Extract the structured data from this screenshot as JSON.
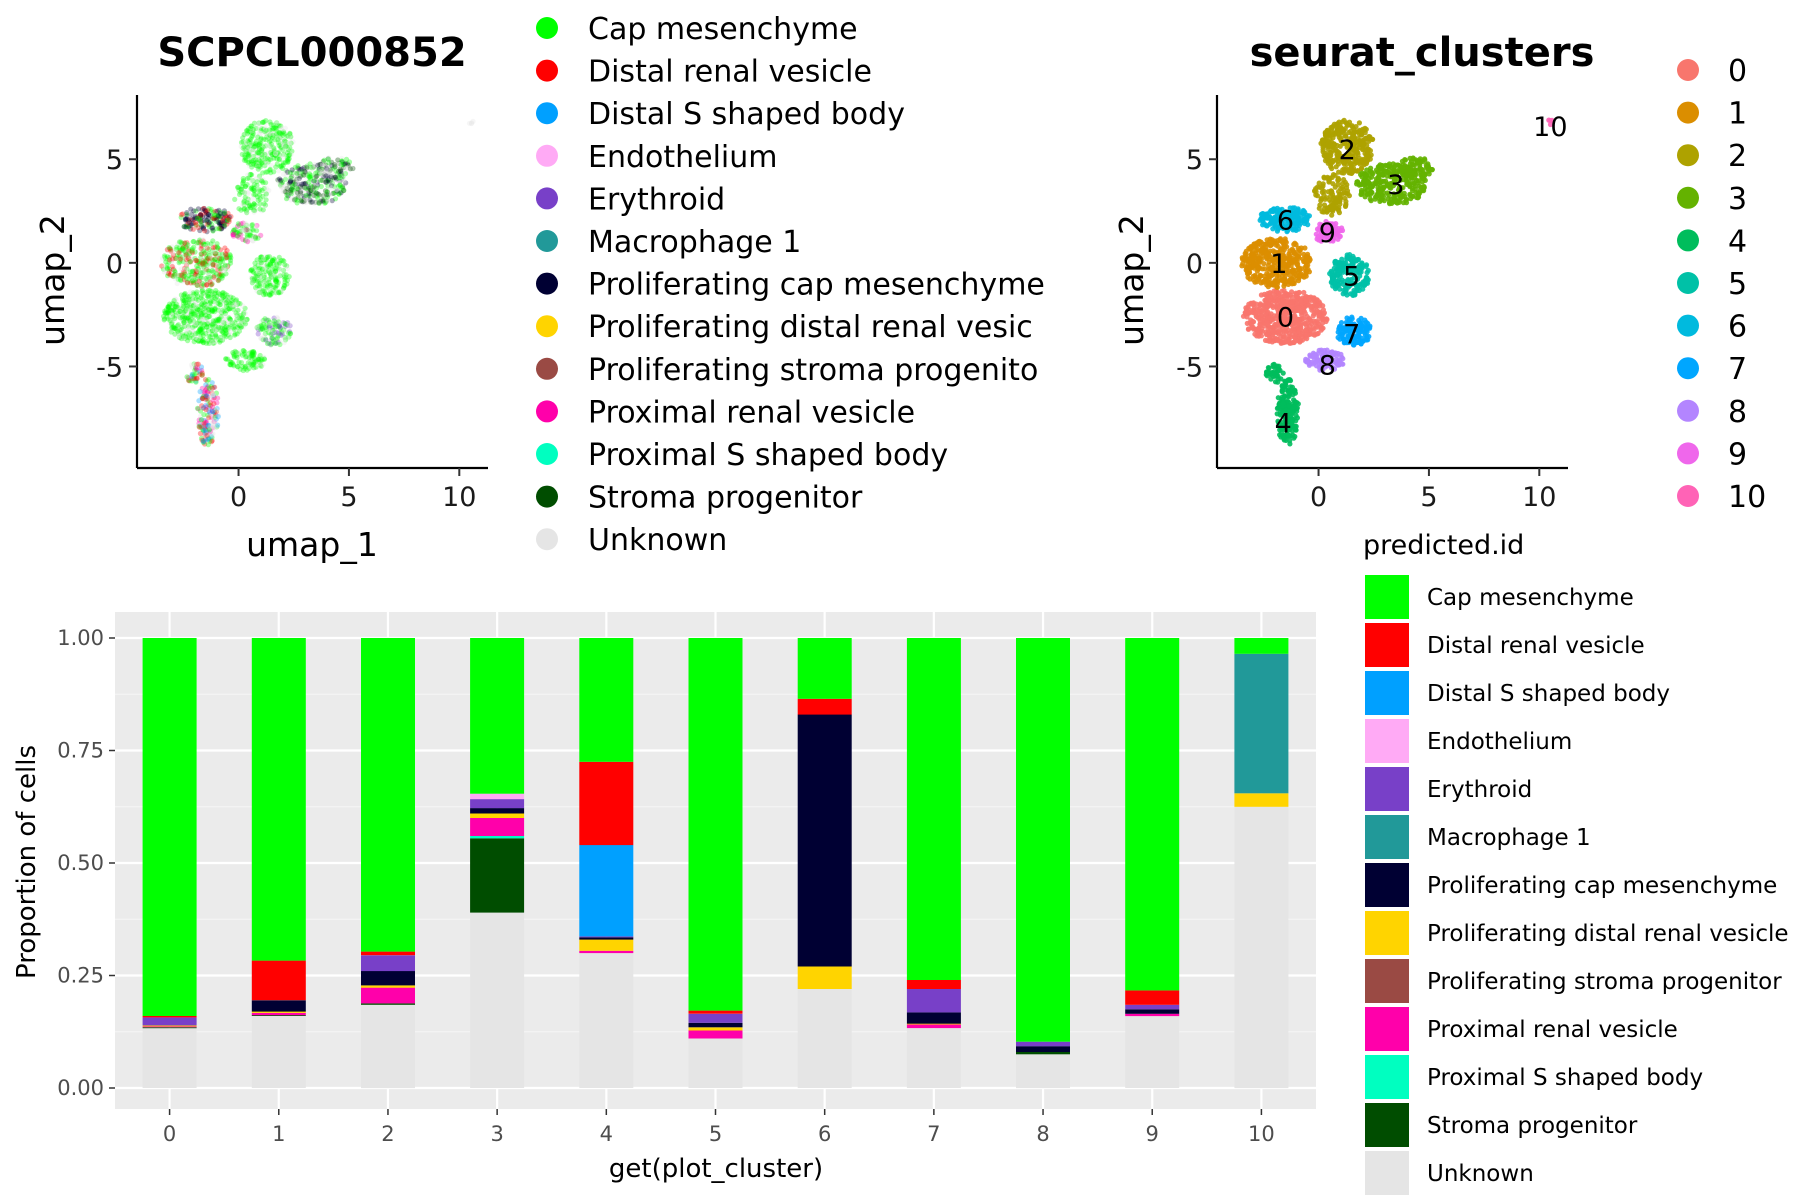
{
  "palette": {
    "Cap mesenchyme": "#00ff00",
    "Distal renal vesicle": "#ff0000",
    "Distal S shaped body": "#00a0ff",
    "Endothelium": "#ffaaf5",
    "Erythroid": "#7840c8",
    "Macrophage 1": "#219999",
    "Proliferating cap mesenchyme": "#000033",
    "Proliferating distal renal vesicle": "#ffd400",
    "Proliferating stroma progenitor": "#9a4a44",
    "Proximal renal vesicle": "#ff00aa",
    "Proximal S shaped body": "#00ffc0",
    "Stroma progenitor": "#004d00",
    "Unknown": "#e5e5e5"
  },
  "cluster_palette": [
    "#f8766d",
    "#db8e00",
    "#aea200",
    "#64b200",
    "#00bd5c",
    "#00c1a7",
    "#00bade",
    "#00a6ff",
    "#b385ff",
    "#ef67eb",
    "#ff63b6"
  ],
  "chart_data": [
    {
      "type": "scatter",
      "title": "SCPCL000852",
      "xlabel": "umap_1",
      "ylabel": "umap_2",
      "xlim": [
        -4.6,
        11.3
      ],
      "ylim": [
        -9.9,
        8.1
      ],
      "xticks": [
        "0",
        "5",
        "10"
      ],
      "xtick_values": [
        0,
        5,
        10
      ],
      "yticks": [
        "5",
        "0",
        "-5"
      ],
      "ytick_values": [
        5,
        0,
        -5
      ],
      "legend_position": "right",
      "legend": [
        "Cap mesenchyme",
        "Distal renal vesicle",
        "Distal S shaped body",
        "Endothelium",
        "Erythroid",
        "Macrophage 1",
        "Proliferating cap mesenchyme",
        "Proliferating distal renal vesicle",
        "Proliferating stroma progenitor",
        "Proximal renal vesicle",
        "Proximal S shaped body",
        "Stroma progenitor",
        "Unknown"
      ],
      "legend_display": [
        "Cap mesenchyme",
        "Distal renal vesicle",
        "Distal S shaped body",
        "Endothelium",
        "Erythroid",
        "Macrophage 1",
        "Proliferating cap mesenchyme",
        "Proliferating distal renal vesic",
        "Proliferating stroma progenito",
        "Proximal renal vesicle",
        "Proximal S shaped body",
        "Stroma progenitor",
        "Unknown"
      ]
    },
    {
      "type": "scatter",
      "title": "seurat_clusters",
      "xlabel": "",
      "ylabel": "umap_2",
      "xlim": [
        -4.6,
        11.3
      ],
      "ylim": [
        -9.9,
        8.1
      ],
      "xticks": [
        "0",
        "5",
        "10"
      ],
      "xtick_values": [
        0,
        5,
        10
      ],
      "yticks": [
        "5",
        "0",
        "-5"
      ],
      "ytick_values": [
        5,
        0,
        -5
      ],
      "legend_position": "right",
      "legend": [
        "0",
        "1",
        "2",
        "3",
        "4",
        "5",
        "6",
        "7",
        "8",
        "9",
        "10"
      ],
      "cluster_labels": [
        {
          "label": "0",
          "x": -1.5,
          "y": -2.6
        },
        {
          "label": "1",
          "x": -1.8,
          "y": 0.0
        },
        {
          "label": "2",
          "x": 1.3,
          "y": 5.5
        },
        {
          "label": "3",
          "x": 3.5,
          "y": 3.8
        },
        {
          "label": "4",
          "x": -1.6,
          "y": -7.7
        },
        {
          "label": "5",
          "x": 1.5,
          "y": -0.6
        },
        {
          "label": "6",
          "x": -1.5,
          "y": 2.1
        },
        {
          "label": "7",
          "x": 1.5,
          "y": -3.4
        },
        {
          "label": "8",
          "x": 0.4,
          "y": -4.9
        },
        {
          "label": "9",
          "x": 0.4,
          "y": 1.5
        },
        {
          "label": "10",
          "x": 10.5,
          "y": 6.6
        }
      ]
    },
    {
      "type": "bar",
      "stacked": true,
      "xlabel": "get(plot_cluster)",
      "ylabel": "Proportion of cells",
      "ylim": [
        0,
        1
      ],
      "yticks": [
        "0.00",
        "0.25",
        "0.50",
        "0.75",
        "1.00"
      ],
      "categories": [
        "0",
        "1",
        "2",
        "3",
        "4",
        "5",
        "6",
        "7",
        "8",
        "9",
        "10"
      ],
      "legend_title": "predicted.id",
      "legend_position": "right",
      "legend": [
        "Cap mesenchyme",
        "Distal renal vesicle",
        "Distal S shaped body",
        "Endothelium",
        "Erythroid",
        "Macrophage 1",
        "Proliferating cap mesenchyme",
        "Proliferating distal renal vesicle",
        "Proliferating stroma progenitor",
        "Proximal renal vesicle",
        "Proximal S shaped body",
        "Stroma progenitor",
        "Unknown"
      ],
      "legend_display": [
        "Cap mesenchyme",
        "Distal renal vesicle",
        "Distal S shaped body",
        "Endothelium",
        "Erythroid",
        "Macrophage 1",
        "Proliferating cap mesenchyme",
        "Proliferating distal renal vesicle",
        "Proliferating stroma progenitor",
        "Proximal renal vesicle",
        "Proximal S shaped body",
        "Stroma progenitor",
        "Unknown"
      ],
      "stack_order": [
        "Unknown",
        "Stroma progenitor",
        "Proximal S shaped body",
        "Proximal renal vesicle",
        "Proliferating stroma progenitor",
        "Proliferating distal renal vesicle",
        "Proliferating cap mesenchyme",
        "Macrophage 1",
        "Erythroid",
        "Endothelium",
        "Distal S shaped body",
        "Distal renal vesicle",
        "Cap mesenchyme"
      ],
      "series": [
        {
          "name": "Unknown",
          "values": [
            0.133,
            0.16,
            0.185,
            0.39,
            0.3,
            0.11,
            0.22,
            0.133,
            0.075,
            0.16,
            0.625
          ]
        },
        {
          "name": "Stroma progenitor",
          "values": [
            0.002,
            0.002,
            0.003,
            0.165,
            0.0,
            0.0,
            0.0,
            0.0,
            0.005,
            0.0,
            0.0
          ]
        },
        {
          "name": "Proximal S shaped body",
          "values": [
            0.0,
            0.0,
            0.0,
            0.005,
            0.0,
            0.0,
            0.0,
            0.0,
            0.0,
            0.0,
            0.0
          ]
        },
        {
          "name": "Proximal renal vesicle",
          "values": [
            0.002,
            0.005,
            0.035,
            0.04,
            0.005,
            0.018,
            0.0,
            0.008,
            0.0,
            0.005,
            0.0
          ]
        },
        {
          "name": "Proliferating stroma progenitor",
          "values": [
            0.0,
            0.0,
            0.0,
            0.0,
            0.0,
            0.0,
            0.0,
            0.0,
            0.0,
            0.0,
            0.0
          ]
        },
        {
          "name": "Proliferating distal renal vesicle",
          "values": [
            0.002,
            0.003,
            0.005,
            0.01,
            0.025,
            0.007,
            0.05,
            0.002,
            0.0,
            0.0,
            0.03
          ]
        },
        {
          "name": "Proliferating cap mesenchyme",
          "values": [
            0.0,
            0.025,
            0.032,
            0.012,
            0.005,
            0.01,
            0.56,
            0.025,
            0.013,
            0.01,
            0.0
          ]
        },
        {
          "name": "Macrophage 1",
          "values": [
            0.0,
            0.0,
            0.0,
            0.0,
            0.0,
            0.0,
            0.0,
            0.0,
            0.0,
            0.0,
            0.31
          ]
        },
        {
          "name": "Erythroid",
          "values": [
            0.018,
            0.0,
            0.035,
            0.02,
            0.002,
            0.02,
            0.0,
            0.052,
            0.01,
            0.01,
            0.0
          ]
        },
        {
          "name": "Endothelium",
          "values": [
            0.0,
            0.0,
            0.0,
            0.012,
            0.0,
            0.0,
            0.0,
            0.0,
            0.0,
            0.0,
            0.0
          ]
        },
        {
          "name": "Distal S shaped body",
          "values": [
            0.0,
            0.0,
            0.0,
            0.0,
            0.203,
            0.0,
            0.0,
            0.0,
            0.0,
            0.0,
            0.0
          ]
        },
        {
          "name": "Distal renal vesicle",
          "values": [
            0.003,
            0.088,
            0.008,
            0.0,
            0.185,
            0.007,
            0.035,
            0.02,
            0.0,
            0.032,
            0.0
          ]
        },
        {
          "name": "Cap mesenchyme",
          "values": [
            0.84,
            0.717,
            0.697,
            0.346,
            0.275,
            0.828,
            0.135,
            0.76,
            0.897,
            0.783,
            0.035
          ]
        }
      ]
    }
  ]
}
